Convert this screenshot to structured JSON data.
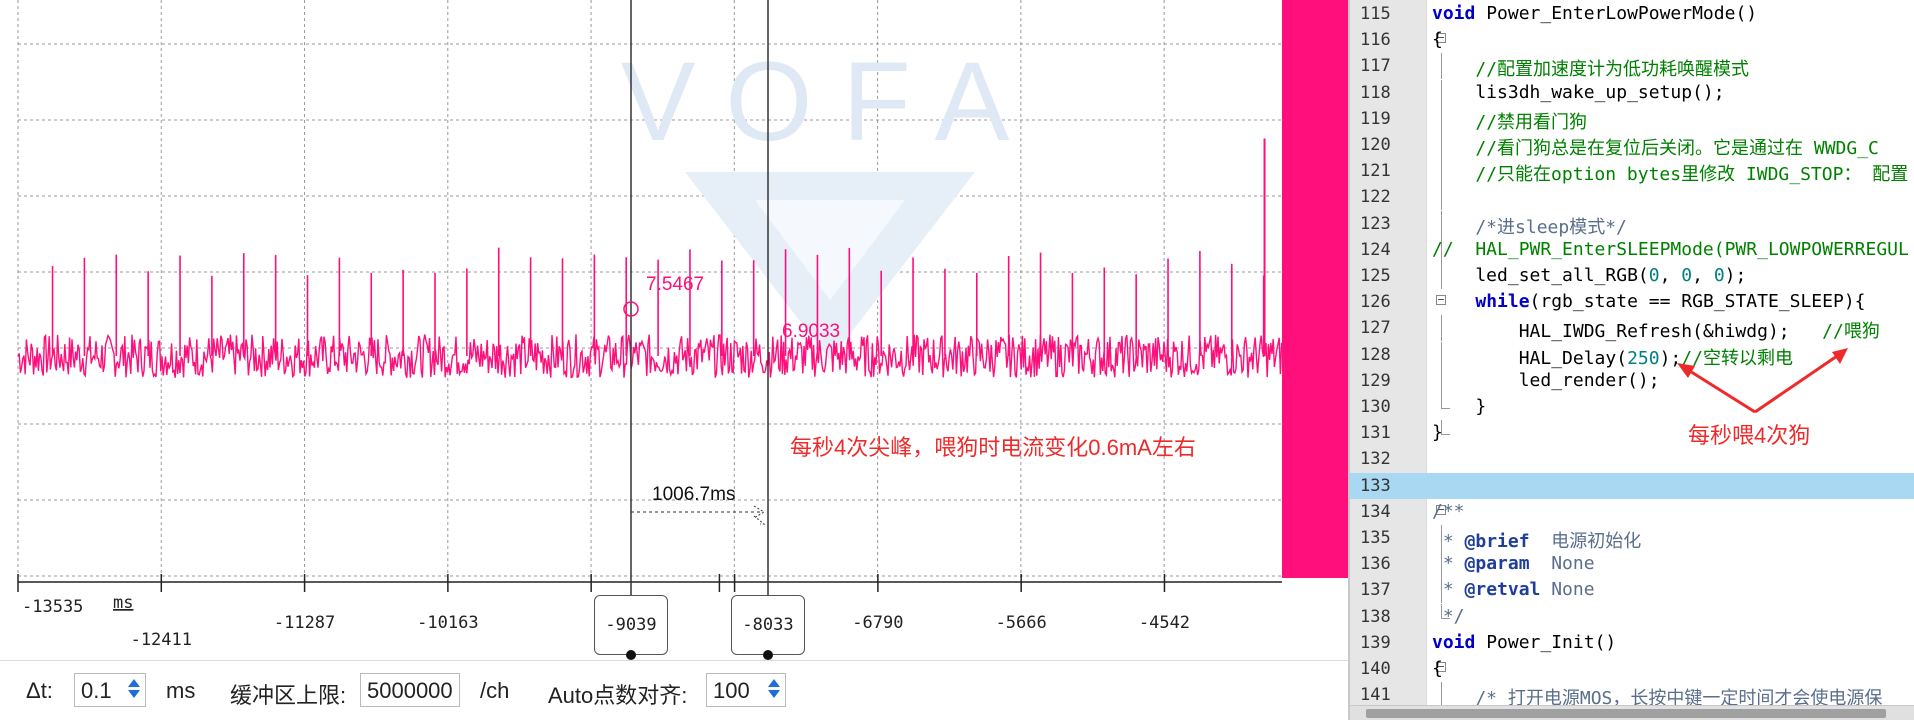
{
  "scope": {
    "watermark": "VOFA",
    "colors": {
      "waveform": "#ff0f7b",
      "annotation": "#ef2a2a",
      "grid": "#9a9a9a",
      "panel": "#ff0f7b"
    },
    "x_unit": "ms",
    "x_ticks": [
      "-13535",
      "-12411",
      "-11287",
      "-10163",
      "-6790",
      "-5666",
      "-4542"
    ],
    "cursors": [
      {
        "label": "-9039",
        "value": "7.5467"
      },
      {
        "label": "-8033",
        "value": "6.9033"
      }
    ],
    "delta_label": "1006.7ms",
    "annotation_text": "每秒4次尖峰，喂狗时电流变化0.6mA左右",
    "chart_data": {
      "type": "line",
      "title": "",
      "xlabel": "ms",
      "ylabel": "",
      "xlim": [
        -13535,
        -3620
      ],
      "baseline": 6.9,
      "noise_band": 0.15,
      "spike_value": 7.55,
      "spike_interval_ms": 250,
      "last_spike_value": 8.4
    }
  },
  "controls": {
    "dt_label": "Δt:",
    "dt_value": "0.1",
    "dt_unit": "ms",
    "buffer_label": "缓冲区上限:",
    "buffer_value": "5000000",
    "buffer_unit": "/ch",
    "auto_label": "Auto点数对齐:",
    "auto_value": "100"
  },
  "editor": {
    "lines": [
      {
        "num": "115",
        "text": "void Power_EnterLowPowerMode()"
      },
      {
        "num": "116",
        "text": "{"
      },
      {
        "num": "117",
        "text": "    //配置加速度计为低功耗唤醒模式"
      },
      {
        "num": "118",
        "text": "    lis3dh_wake_up_setup();"
      },
      {
        "num": "119",
        "text": "    //禁用看门狗"
      },
      {
        "num": "120",
        "text": "    //看门狗总是在复位后关闭。它是通过在 WWDG_C"
      },
      {
        "num": "121",
        "text": "    //只能在option bytes里修改 IWDG_STOP： 配置"
      },
      {
        "num": "122",
        "text": ""
      },
      {
        "num": "123",
        "text": "    /*进sleep模式*/"
      },
      {
        "num": "124",
        "text": "//  HAL_PWR_EnterSLEEPMode(PWR_LOWPOWERREGUL"
      },
      {
        "num": "125",
        "text": "    led_set_all_RGB(0, 0, 0);"
      },
      {
        "num": "126",
        "text": "    while(rgb_state == RGB_STATE_SLEEP){"
      },
      {
        "num": "127",
        "text": "        HAL_IWDG_Refresh(&hiwdg);   //喂狗"
      },
      {
        "num": "128",
        "text": "        HAL_Delay(250);//空转以剩电"
      },
      {
        "num": "129",
        "text": "        led_render();"
      },
      {
        "num": "130",
        "text": "    }"
      },
      {
        "num": "131",
        "text": "}"
      },
      {
        "num": "132",
        "text": ""
      },
      {
        "num": "133",
        "text": ""
      },
      {
        "num": "134",
        "text": "/**"
      },
      {
        "num": "135",
        "text": " * @brief  电源初始化"
      },
      {
        "num": "136",
        "text": " * @param  None"
      },
      {
        "num": "137",
        "text": " * @retval None"
      },
      {
        "num": "138",
        "text": " */"
      },
      {
        "num": "139",
        "text": "void Power_Init()"
      },
      {
        "num": "140",
        "text": "{"
      },
      {
        "num": "141",
        "text": "    /* 打开电源MOS，长按中键一定时间才会使电源保"
      }
    ],
    "annotation_text": "每秒喂4次狗"
  }
}
